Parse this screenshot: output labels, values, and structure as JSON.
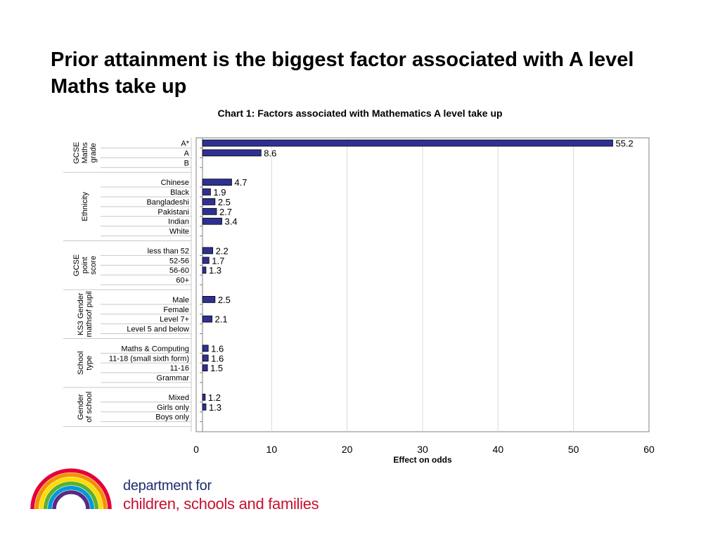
{
  "slide": {
    "title": "Prior attainment is the biggest factor associated with A level Maths take up"
  },
  "logo": {
    "line1": "department for",
    "line2": "children, schools and families",
    "colors": [
      "#e4003b",
      "#f39200",
      "#ffdd00",
      "#5cb030",
      "#0099d8",
      "#5a2a82"
    ]
  },
  "chart_data": {
    "type": "bar",
    "orientation": "horizontal",
    "title": "Chart 1: Factors associated with Mathematics A level take up",
    "xlabel": "Effect on odds",
    "xlim": [
      0,
      60
    ],
    "xticks": [
      0,
      10,
      20,
      30,
      40,
      50,
      60
    ],
    "grid": true,
    "bar_color": "#2e3192",
    "groups": [
      {
        "label": "GCSE Maths grade",
        "label_lines": [
          "GCSE",
          "Maths",
          "grade"
        ],
        "items": [
          {
            "category": "A*",
            "value": 55.2
          },
          {
            "category": "A",
            "value": 8.6
          },
          {
            "category": "B",
            "value": null
          }
        ]
      },
      {
        "label": "Ethnicity",
        "label_lines": [
          "Ethnicity"
        ],
        "items": [
          {
            "category": "Chinese",
            "value": 4.7
          },
          {
            "category": "Black",
            "value": 1.9
          },
          {
            "category": "Bangladeshi",
            "value": 2.5
          },
          {
            "category": "Pakistani",
            "value": 2.7
          },
          {
            "category": "Indian",
            "value": 3.4
          },
          {
            "category": "White",
            "value": null
          }
        ]
      },
      {
        "label": "GCSE point score",
        "label_lines": [
          "GCSE",
          "point",
          "score"
        ],
        "items": [
          {
            "category": "less than 52",
            "value": 2.2
          },
          {
            "category": "52-56",
            "value": 1.7
          },
          {
            "category": "56-60",
            "value": 1.3
          },
          {
            "category": "60+",
            "value": null
          }
        ]
      },
      {
        "label": "KS3 Gender mathsof pupil",
        "label_lines": [
          "KS3 Gender",
          "mathsof pupil"
        ],
        "items": [
          {
            "category": "Male",
            "value": 2.5
          },
          {
            "category": "Female",
            "value": null
          },
          {
            "category": "Level 7+",
            "value": 2.1
          },
          {
            "category": "Level 5 and below",
            "value": null
          }
        ]
      },
      {
        "label": "School type",
        "label_lines": [
          "School",
          "type"
        ],
        "items": [
          {
            "category": "Maths & Computing",
            "value": 1.6
          },
          {
            "category": "11-18 (small sixth form)",
            "value": 1.6
          },
          {
            "category": "11-16",
            "value": 1.5
          },
          {
            "category": "Grammar",
            "value": null
          }
        ]
      },
      {
        "label": "Gender of school",
        "label_lines": [
          "Gender",
          "of school"
        ],
        "items": [
          {
            "category": "Mixed",
            "value": 1.2
          },
          {
            "category": "Girls only",
            "value": 1.3
          },
          {
            "category": "Boys only",
            "value": null
          }
        ]
      }
    ]
  }
}
